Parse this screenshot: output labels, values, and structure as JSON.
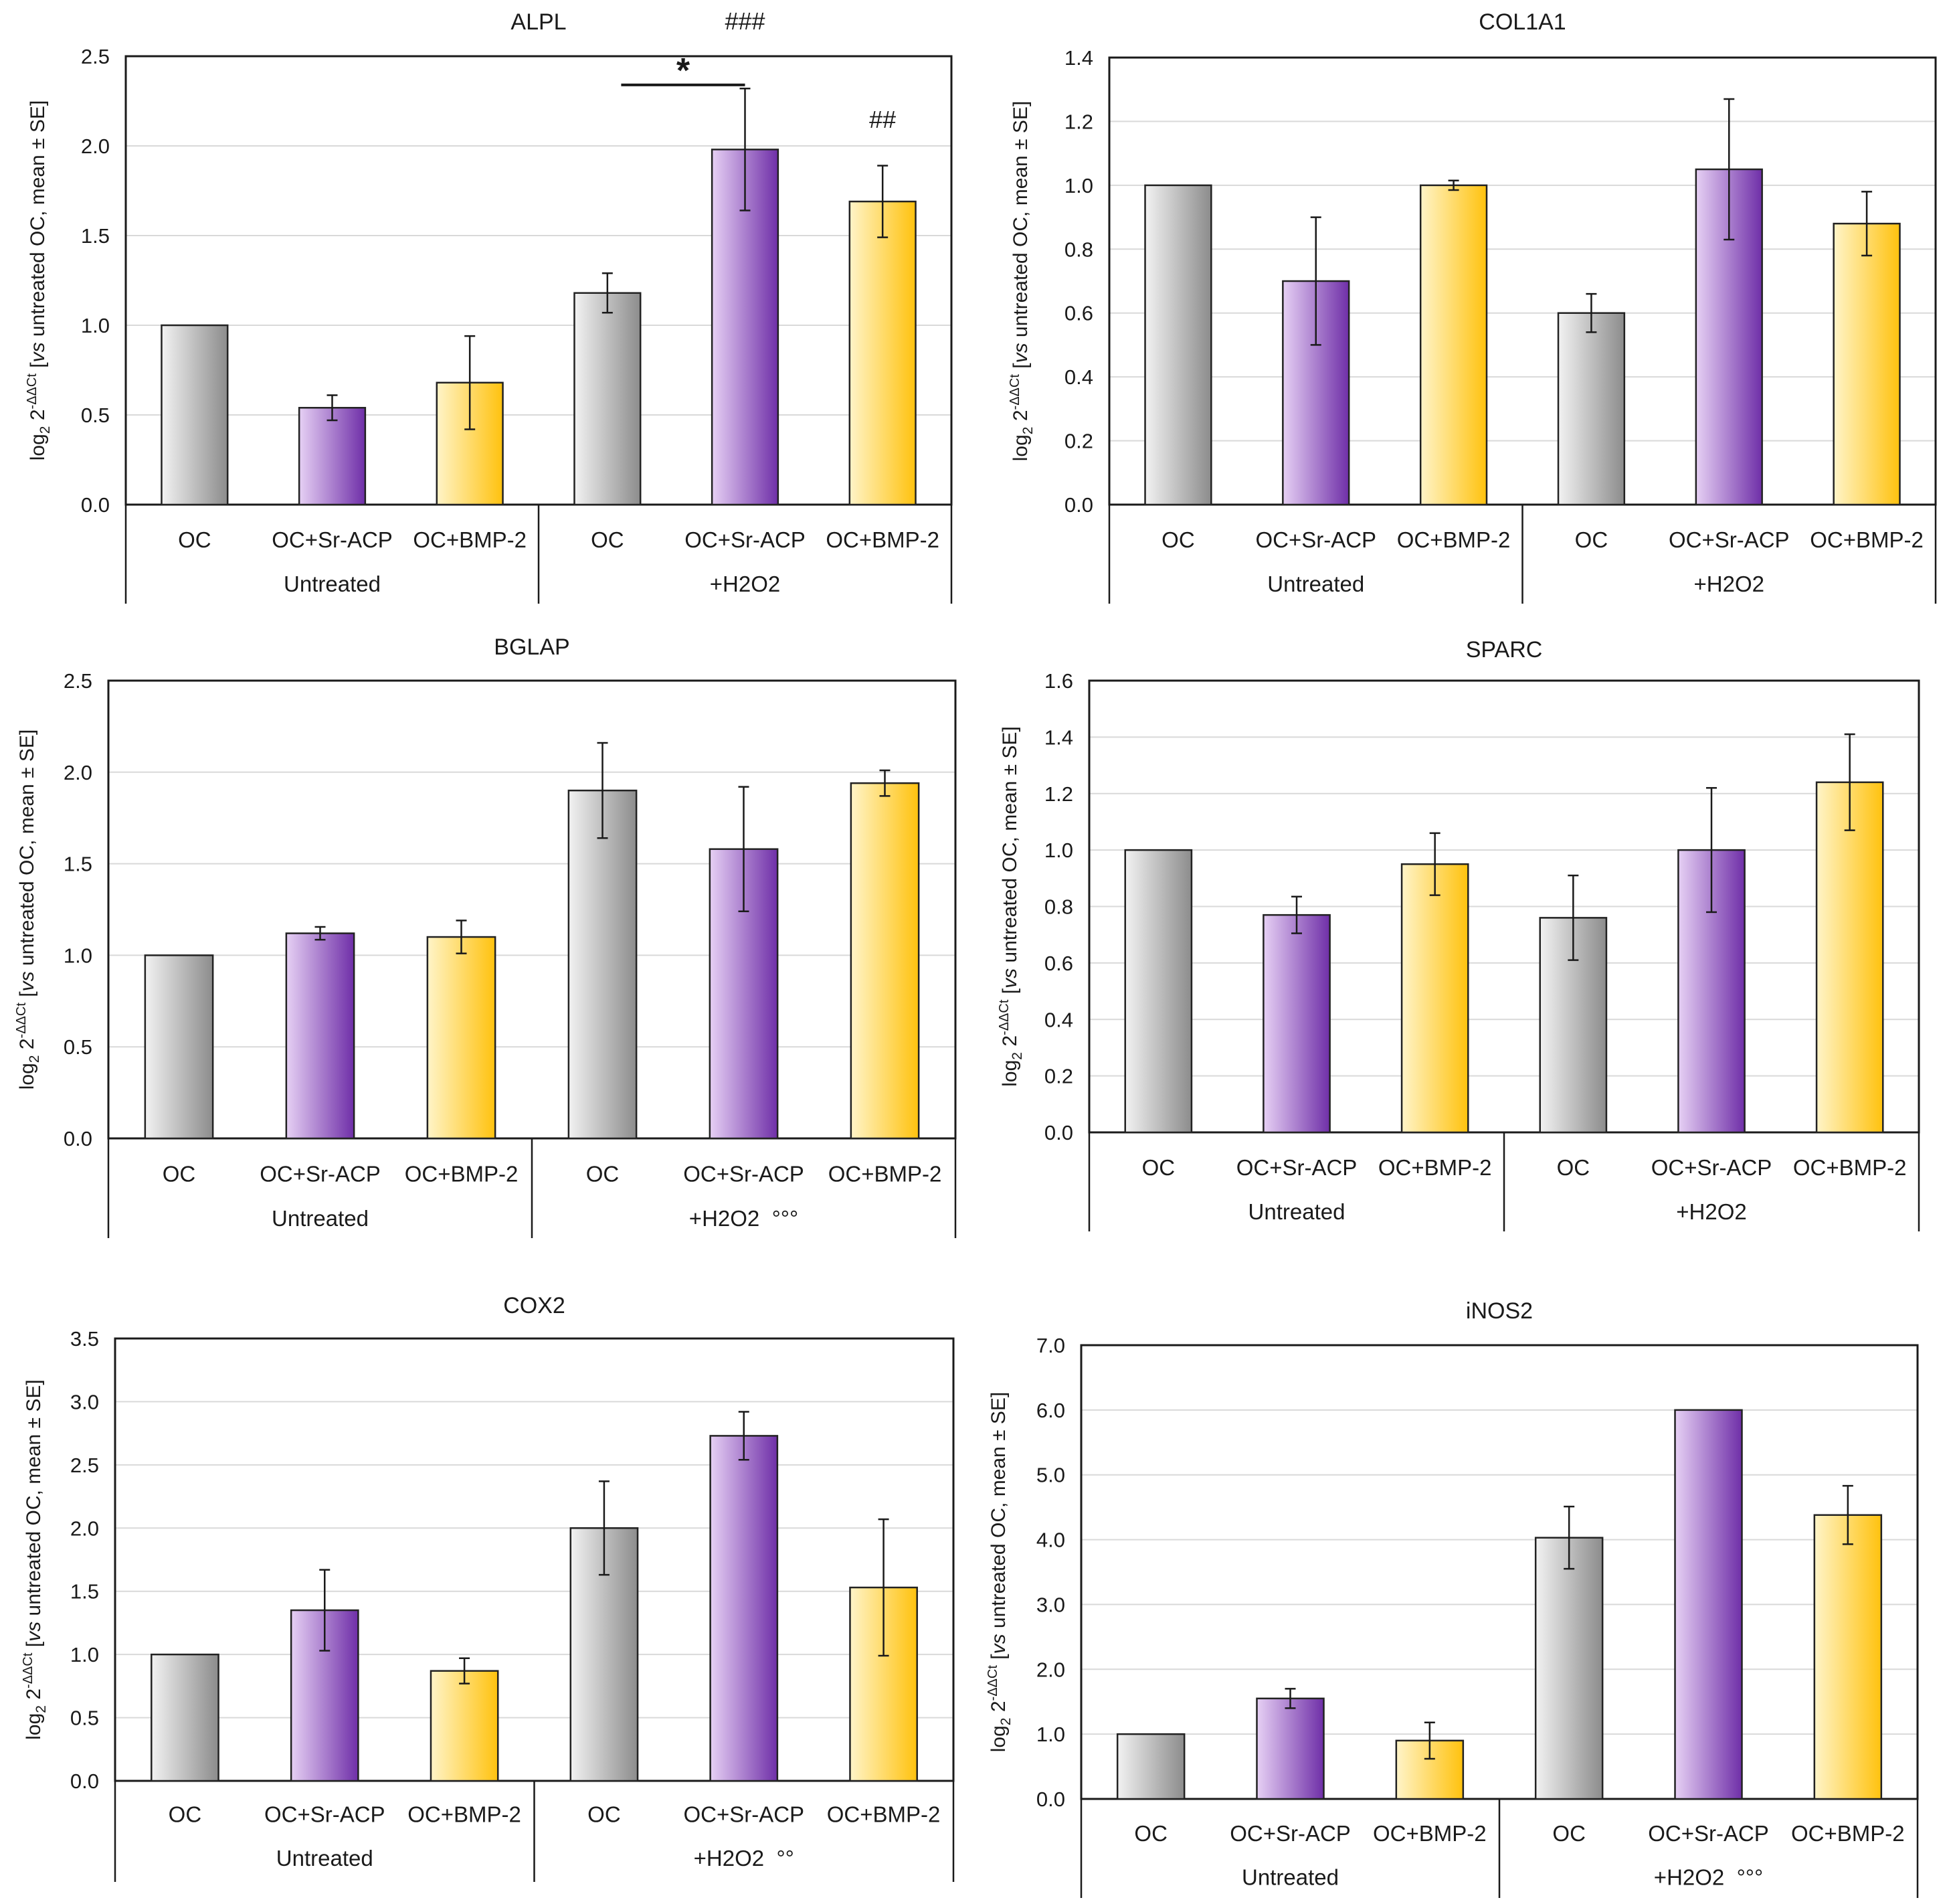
{
  "figure": {
    "categories": [
      "OC",
      "OC+Sr-ACP",
      "OC+BMP-2",
      "OC",
      "OC+Sr-ACP",
      "OC+BMP-2"
    ],
    "groups": [
      "Untreated",
      "+H2O2"
    ],
    "ylabel_parts": {
      "log": "log",
      "base_sub": "2",
      "two": " 2",
      "exp": "-ΔΔCt",
      "open": " [",
      "vs": "vs",
      "rest": " untreated OC, mean ± SE]"
    },
    "colors": {
      "gray_light": "#f2f2f2",
      "gray_dark": "#8c8c8c",
      "purple_light": "#e6d0f4",
      "purple_dark": "#6f2fa8",
      "yellow_light": "#fff4c8",
      "yellow_dark": "#ffc20e",
      "grid": "#d9d9d9",
      "axis": "#1a1a1a"
    }
  },
  "chart_data": [
    {
      "type": "bar",
      "title": "ALPL",
      "categories": [
        "OC",
        "OC+Sr-ACP",
        "OC+BMP-2",
        "OC",
        "OC+Sr-ACP",
        "OC+BMP-2"
      ],
      "values": [
        1.0,
        0.54,
        0.68,
        1.18,
        1.98,
        1.69
      ],
      "errors": [
        0.0,
        0.07,
        0.26,
        0.11,
        0.34,
        0.2
      ],
      "ylim": [
        0,
        2.5
      ],
      "yticks": [
        "0.0",
        "0.5",
        "1.0",
        "1.5",
        "2.0",
        "2.5"
      ],
      "group_label_2": "+H2O2",
      "annotations": [
        {
          "text": "###",
          "bar": 4,
          "at": 2.65
        },
        {
          "text": "##",
          "bar": 5,
          "at": 2.1
        },
        {
          "text": "*",
          "from_bar": 3.1,
          "to_bar": 4,
          "at": 2.34
        }
      ]
    },
    {
      "type": "bar",
      "title": "COL1A1",
      "categories": [
        "OC",
        "OC+Sr-ACP",
        "OC+BMP-2",
        "OC",
        "OC+Sr-ACP",
        "OC+BMP-2"
      ],
      "values": [
        1.0,
        0.7,
        1.0,
        0.6,
        1.05,
        0.88
      ],
      "errors": [
        0.0,
        0.2,
        0.015,
        0.06,
        0.22,
        0.1
      ],
      "ylim": [
        0,
        1.4
      ],
      "yticks": [
        "0.0",
        "0.2",
        "0.4",
        "0.6",
        "0.8",
        "1.0",
        "1.2",
        "1.4"
      ],
      "group_label_2": "+H2O2",
      "annotations": []
    },
    {
      "type": "bar",
      "title": "BGLAP",
      "categories": [
        "OC",
        "OC+Sr-ACP",
        "OC+BMP-2",
        "OC",
        "OC+Sr-ACP",
        "OC+BMP-2"
      ],
      "values": [
        1.0,
        1.12,
        1.1,
        1.9,
        1.58,
        1.94
      ],
      "errors": [
        0.0,
        0.035,
        0.09,
        0.26,
        0.34,
        0.07
      ],
      "ylim": [
        0,
        2.5
      ],
      "yticks": [
        "0.0",
        "0.5",
        "1.0",
        "1.5",
        "2.0",
        "2.5"
      ],
      "group_label_2": "+H2O2  °°°",
      "annotations": []
    },
    {
      "type": "bar",
      "title": "SPARC",
      "categories": [
        "OC",
        "OC+Sr-ACP",
        "OC+BMP-2",
        "OC",
        "OC+Sr-ACP",
        "OC+BMP-2"
      ],
      "values": [
        1.0,
        0.77,
        0.95,
        0.76,
        1.0,
        1.24
      ],
      "errors": [
        0.0,
        0.065,
        0.11,
        0.15,
        0.22,
        0.17
      ],
      "ylim": [
        0,
        1.6
      ],
      "yticks": [
        "0.0",
        "0.2",
        "0.4",
        "0.6",
        "0.8",
        "1.0",
        "1.2",
        "1.4",
        "1.6"
      ],
      "group_label_2": "+H2O2",
      "annotations": []
    },
    {
      "type": "bar",
      "title": "COX2",
      "categories": [
        "OC",
        "OC+Sr-ACP",
        "OC+BMP-2",
        "OC",
        "OC+Sr-ACP",
        "OC+BMP-2"
      ],
      "values": [
        1.0,
        1.35,
        0.87,
        2.0,
        2.73,
        1.53
      ],
      "errors": [
        0.0,
        0.32,
        0.1,
        0.37,
        0.19,
        0.54
      ],
      "ylim": [
        0,
        3.5
      ],
      "yticks": [
        "0.0",
        "0.5",
        "1.0",
        "1.5",
        "2.0",
        "2.5",
        "3.0",
        "3.5"
      ],
      "group_label_2": "+H2O2  °°",
      "annotations": []
    },
    {
      "type": "bar",
      "title": "iNOS2",
      "categories": [
        "OC",
        "OC+Sr-ACP",
        "OC+BMP-2",
        "OC",
        "OC+Sr-ACP",
        "OC+BMP-2"
      ],
      "values": [
        1.0,
        1.55,
        0.9,
        4.03,
        6.0,
        4.38
      ],
      "errors": [
        0.0,
        0.15,
        0.28,
        0.48,
        0.0,
        0.45
      ],
      "ylim": [
        0,
        7
      ],
      "yticks": [
        "0.0",
        "1.0",
        "2.0",
        "3.0",
        "4.0",
        "5.0",
        "6.0",
        "7.0"
      ],
      "group_label_2": "+H2O2  °°°",
      "annotations": []
    }
  ]
}
